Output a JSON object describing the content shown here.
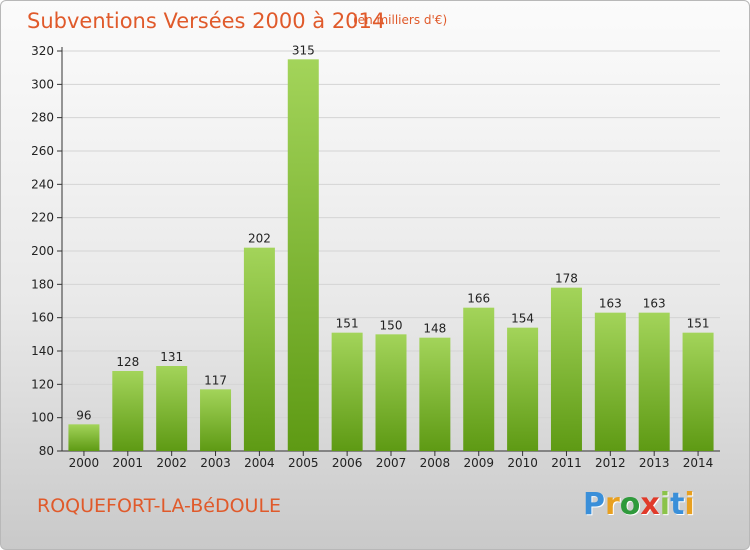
{
  "header": {
    "title": "Subventions Versées 2000 à 2014",
    "unit": "(en milliers d'€)"
  },
  "footer": {
    "commune": "ROQUEFORT-LA-BéDOULE",
    "logo_letters": [
      "P",
      "r",
      "o",
      "x",
      "i",
      "t",
      "i"
    ],
    "logo_colors": [
      "#3a8fd9",
      "#e8a020",
      "#2f9a3c",
      "#e03a2a",
      "#8bc34a",
      "#3a8fd9",
      "#e8a020"
    ]
  },
  "colors": {
    "bar_top": "#a3d45a",
    "bar_bottom": "#5e9a14",
    "grid": "#d4d4d4",
    "accent": "#e05a2b"
  },
  "chart_data": {
    "type": "bar",
    "categories": [
      "2000",
      "2001",
      "2002",
      "2003",
      "2004",
      "2005",
      "2006",
      "2007",
      "2008",
      "2009",
      "2010",
      "2011",
      "2012",
      "2013",
      "2014"
    ],
    "values": [
      96,
      128,
      131,
      117,
      202,
      315,
      151,
      150,
      148,
      166,
      154,
      178,
      163,
      163,
      151
    ],
    "ylim": [
      80,
      320
    ],
    "yticks": [
      80,
      100,
      120,
      140,
      160,
      180,
      200,
      220,
      240,
      260,
      280,
      300,
      320
    ],
    "grid": true,
    "data_labels": true
  }
}
